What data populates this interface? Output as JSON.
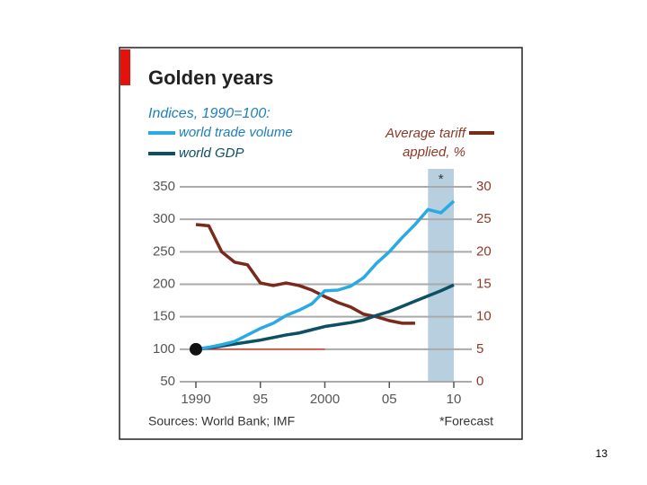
{
  "chart_data": {
    "type": "line",
    "title": "Golden years",
    "subtitle": "Indices, 1990=100:",
    "x": [
      1990,
      1991,
      1992,
      1993,
      1994,
      1995,
      1996,
      1997,
      1998,
      1999,
      2000,
      2001,
      2002,
      2003,
      2004,
      2005,
      2006,
      2007,
      2008,
      2009,
      2010
    ],
    "series": [
      {
        "name": "world trade volume",
        "color": "#2aaae2",
        "values": [
          100,
          103,
          107,
          112,
          122,
          132,
          140,
          152,
          160,
          170,
          190,
          191,
          197,
          210,
          232,
          250,
          272,
          292,
          315,
          310,
          328
        ]
      },
      {
        "name": "world GDP",
        "color": "#0d4f63",
        "values": [
          100,
          102,
          105,
          108,
          111,
          114,
          118,
          122,
          125,
          130,
          135,
          138,
          141,
          145,
          152,
          158,
          166,
          174,
          182,
          190,
          199
        ]
      },
      {
        "name": "Average tariff applied, %",
        "color": "#7a2a1a",
        "axis": "y2",
        "values": [
          24.2,
          24,
          20,
          18.4,
          18,
          15.2,
          14.8,
          15.2,
          14.8,
          14.1,
          13.1,
          12.2,
          11.5,
          10.4,
          10,
          9.4,
          9,
          9,
          null,
          null,
          null
        ]
      }
    ],
    "xlim": [
      1990,
      2010
    ],
    "xticks": [
      1990,
      {
        "value": 1995,
        "label": "95"
      },
      2000,
      {
        "value": 2005,
        "label": "05"
      },
      {
        "value": 2010,
        "label": "10"
      }
    ],
    "ylim": [
      50,
      350
    ],
    "yticks": [
      50,
      100,
      150,
      200,
      250,
      300,
      350
    ],
    "y2lim": [
      0,
      30
    ],
    "y2ticks": [
      0,
      5,
      10,
      15,
      20,
      25,
      30
    ],
    "grid": true,
    "forecast_start": 2008,
    "forecast_marker": "*",
    "source": "Sources: World Bank; IMF",
    "note": "*Forecast"
  },
  "page_number": "13"
}
